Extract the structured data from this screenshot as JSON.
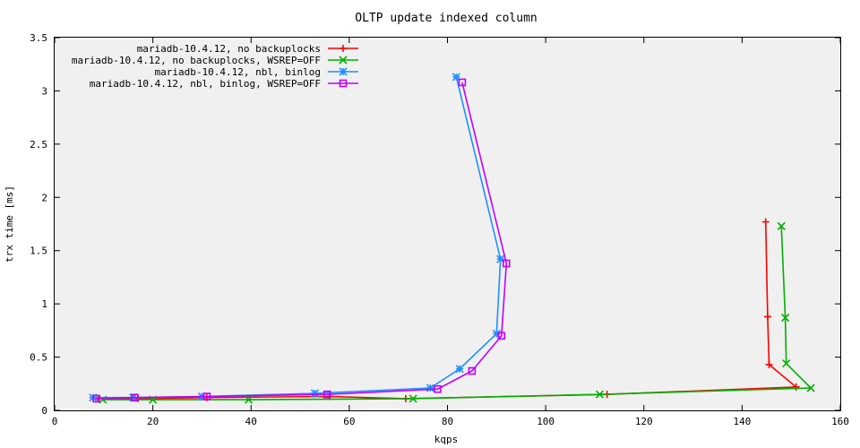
{
  "chart_data": {
    "type": "line",
    "title": "OLTP update indexed column",
    "xlabel": "kqps",
    "ylabel": "trx time [ms]",
    "xlim": [
      0,
      160
    ],
    "ylim": [
      0,
      3.5
    ],
    "x_ticks": [
      0,
      20,
      40,
      60,
      80,
      100,
      120,
      140,
      160
    ],
    "y_ticks": [
      0,
      0.5,
      1,
      1.5,
      2,
      2.5,
      3,
      3.5
    ],
    "x_tick_labels": [
      "0",
      "20",
      "40",
      "60",
      "80",
      "100",
      "120",
      "140",
      "160"
    ],
    "y_tick_labels": [
      "0",
      "0.5",
      "1",
      "1.5",
      "2",
      "2.5",
      "3",
      "3.5"
    ],
    "grid": false,
    "legend_position": "top-left",
    "series": [
      {
        "name": "mariadb-10.4.12, no backuplocks",
        "color": "#ff0000",
        "marker": "plus",
        "x": [
          8.8,
          17.0,
          31.0,
          56.0,
          71.5,
          112.5,
          151.0,
          145.5,
          145.2,
          144.8
        ],
        "y": [
          0.11,
          0.11,
          0.12,
          0.13,
          0.11,
          0.15,
          0.22,
          0.43,
          0.88,
          1.77
        ]
      },
      {
        "name": "mariadb-10.4.12, no backuplocks, WSREP=OFF",
        "color": "#00b000",
        "marker": "x",
        "x": [
          9.8,
          20.0,
          39.5,
          73.0,
          111.0,
          154.0,
          149.0,
          148.8,
          148.0
        ],
        "y": [
          0.1,
          0.1,
          0.1,
          0.11,
          0.15,
          0.21,
          0.44,
          0.87,
          1.73
        ]
      },
      {
        "name": "mariadb-10.4.12, nbl, binlog",
        "color": "#1e90ff",
        "marker": "star",
        "x": [
          7.8,
          16.0,
          30.0,
          53.0,
          76.5,
          82.5,
          90.0,
          90.8,
          81.8
        ],
        "y": [
          0.12,
          0.12,
          0.13,
          0.16,
          0.21,
          0.39,
          0.72,
          1.42,
          3.13
        ]
      },
      {
        "name": "mariadb-10.4.12, nbl, binlog, WSREP=OFF",
        "color": "#c000ff",
        "marker": "square",
        "x": [
          8.5,
          16.3,
          31.0,
          55.5,
          78.0,
          85.0,
          91.0,
          92.0,
          83.0
        ],
        "y": [
          0.11,
          0.12,
          0.13,
          0.15,
          0.2,
          0.37,
          0.7,
          1.38,
          3.08
        ]
      }
    ]
  }
}
